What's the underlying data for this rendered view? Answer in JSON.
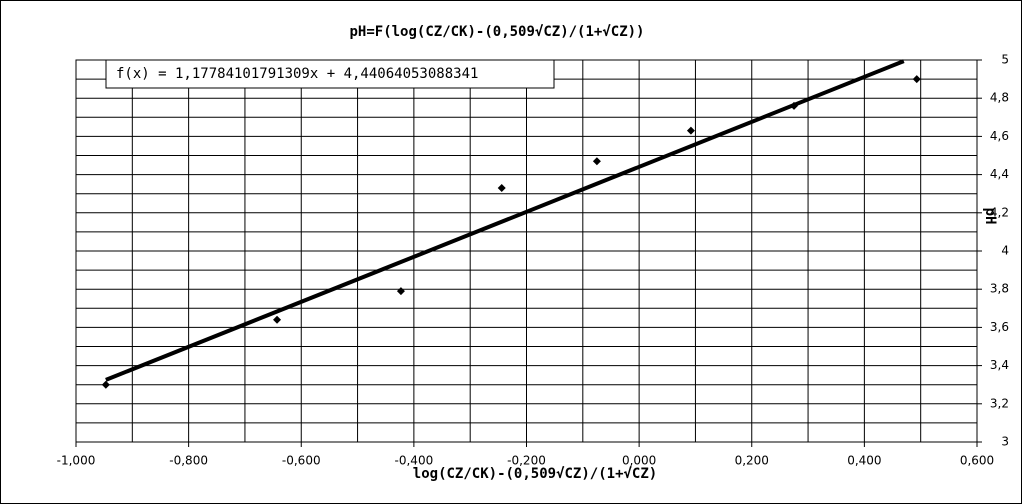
{
  "chart_data": {
    "type": "scatter",
    "title": "pH=F(log(CZ/CK)-(0,509√CZ)/(1+√CZ))",
    "x_label": "log(CZ/CK)-(0,509√CZ)/(1+√CZ)",
    "y_label": "pH",
    "series": [
      {
        "name": "pH",
        "color": "#000000",
        "x": [
          -0.947,
          -0.643,
          -0.423,
          -0.244,
          -0.075,
          0.092,
          0.275,
          0.493
        ],
        "values": [
          3.3,
          3.64,
          3.79,
          4.33,
          4.47,
          4.63,
          4.76,
          4.9
        ]
      }
    ],
    "trendline": {
      "equation": "f(x) = 1,17784101791309x + 4,44064053088341",
      "slope": 1.17784101791309,
      "intercept": 4.44064053088341,
      "x_range": [
        -0.947,
        0.47
      ],
      "color": "#000000"
    },
    "xlim": [
      -1,
      0.6
    ],
    "ylim": [
      3,
      5
    ],
    "xticks": [
      {
        "value": -1,
        "label": "-1,000"
      },
      {
        "value": -0.8,
        "label": "-0,800"
      },
      {
        "value": -0.6,
        "label": "-0,600"
      },
      {
        "value": -0.4,
        "label": "-0,400"
      },
      {
        "value": -0.2,
        "label": "-0,200"
      },
      {
        "value": 0,
        "label": "0,000"
      },
      {
        "value": 0.2,
        "label": "0,200"
      },
      {
        "value": 0.4,
        "label": "0,400"
      },
      {
        "value": 0.6,
        "label": "0,600"
      }
    ],
    "yticks": [
      3,
      {
        "value": 3.2,
        "label": "3,2"
      },
      {
        "value": 3.4,
        "label": "3,4"
      },
      {
        "value": 3.6,
        "label": "3,6"
      },
      {
        "value": 3.8,
        "label": "3,8"
      },
      4,
      {
        "value": 4.2,
        "label": "4,2"
      },
      {
        "value": 4.4,
        "label": "4,4"
      },
      {
        "value": 4.6,
        "label": "4,6"
      },
      {
        "value": 4.8,
        "label": "4,8"
      },
      5
    ],
    "x_minor_grid": [
      -0.9,
      -0.7,
      -0.5,
      -0.3,
      -0.1,
      0.1,
      0.3,
      0.5
    ],
    "y_minor_grid": [
      3.1,
      3.3,
      3.5,
      3.7,
      3.9,
      4.1,
      4.3,
      4.5,
      4.7,
      4.9
    ],
    "grid": true,
    "y_axis_side": "right"
  }
}
